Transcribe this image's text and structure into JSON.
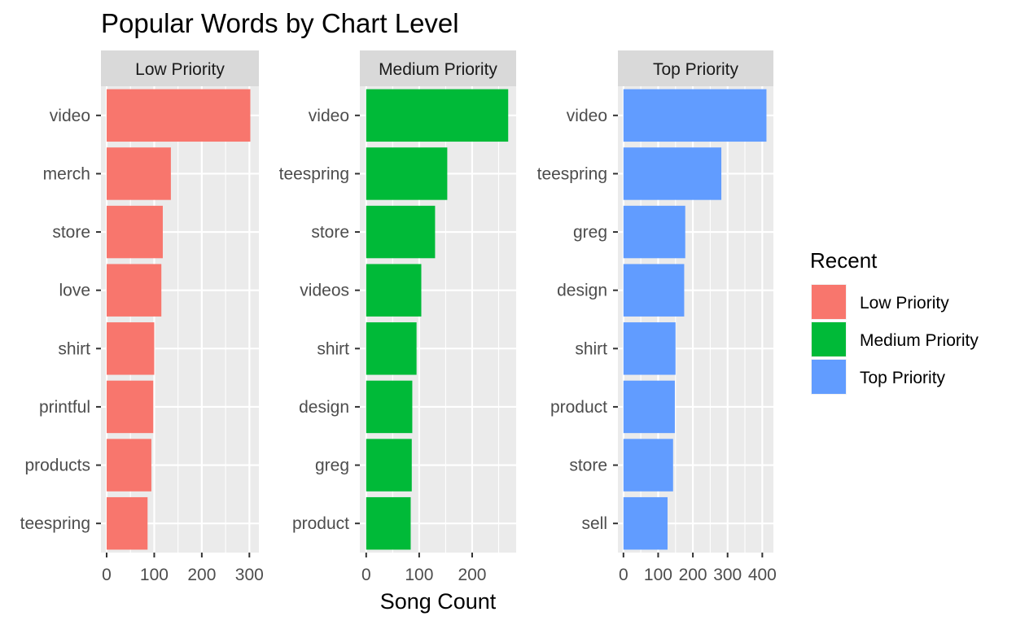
{
  "chart_data": {
    "type": "bar",
    "orientation": "horizontal",
    "title": "Popular Words by Chart Level",
    "xlabel": "Song Count",
    "ylabel": "",
    "grid": true,
    "legend": {
      "title": "Recent",
      "placement": "right",
      "entries": [
        {
          "label": "Low Priority",
          "color": "#F8766D"
        },
        {
          "label": "Medium Priority",
          "color": "#00BA38"
        },
        {
          "label": "Top Priority",
          "color": "#619CFF"
        }
      ]
    },
    "panels": [
      {
        "name": "Low Priority",
        "color": "#F8766D",
        "categories": [
          "video",
          "merch",
          "store",
          "love",
          "shirt",
          "printful",
          "products",
          "teespring"
        ],
        "values": [
          302,
          135,
          118,
          115,
          100,
          98,
          94,
          86
        ],
        "xlim": [
          -12,
          320
        ],
        "xticks": [
          0,
          100,
          200,
          300
        ]
      },
      {
        "name": "Medium Priority",
        "color": "#00BA38",
        "categories": [
          "video",
          "teespring",
          "store",
          "videos",
          "shirt",
          "design",
          "greg",
          "product"
        ],
        "values": [
          268,
          153,
          130,
          104,
          95,
          87,
          86,
          84
        ],
        "xlim": [
          -12,
          283
        ],
        "xticks": [
          0,
          100,
          200
        ]
      },
      {
        "name": "Top Priority",
        "color": "#619CFF",
        "categories": [
          "video",
          "teespring",
          "greg",
          "design",
          "shirt",
          "product",
          "store",
          "sell"
        ],
        "values": [
          412,
          282,
          178,
          175,
          150,
          148,
          143,
          127
        ],
        "xlim": [
          -16,
          432
        ],
        "xticks": [
          0,
          100,
          200,
          300,
          400
        ]
      }
    ]
  }
}
